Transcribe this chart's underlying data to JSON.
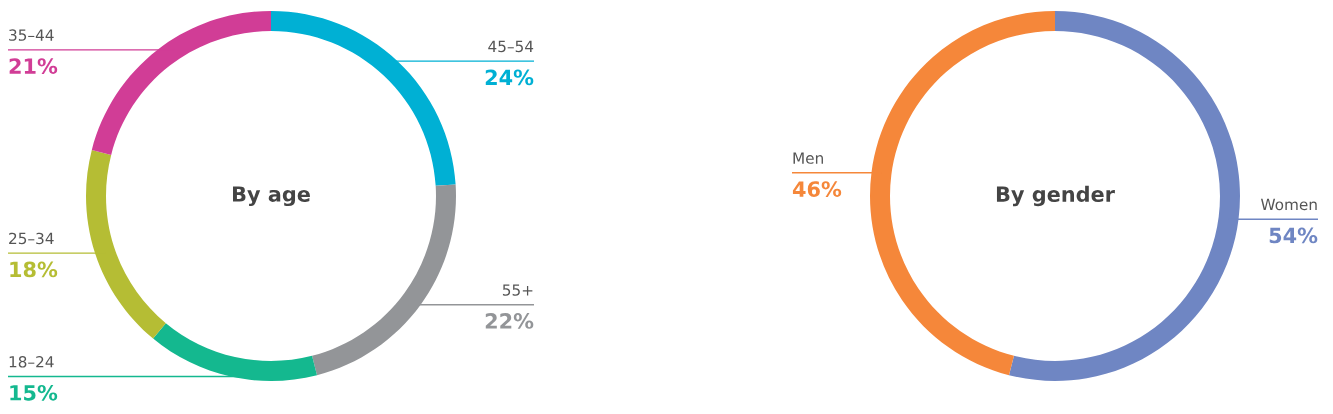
{
  "chart_data": [
    {
      "type": "donut",
      "title": "By age",
      "categories": [
        "45–54",
        "55+",
        "18–24",
        "25–34",
        "35–44"
      ],
      "values": [
        24,
        22,
        15,
        18,
        21
      ],
      "colors": [
        "#00b0d4",
        "#939598",
        "#14b88f",
        "#b5bd34",
        "#d13d96"
      ],
      "value_labels": [
        "24%",
        "22%",
        "15%",
        "18%",
        "21%"
      ],
      "legend": false
    },
    {
      "type": "donut",
      "title": "By gender",
      "categories": [
        "Women",
        "Men"
      ],
      "values": [
        54,
        46
      ],
      "colors": [
        "#6f86c3",
        "#f5873a"
      ],
      "value_labels": [
        "54%",
        "46%"
      ],
      "legend": false
    }
  ]
}
